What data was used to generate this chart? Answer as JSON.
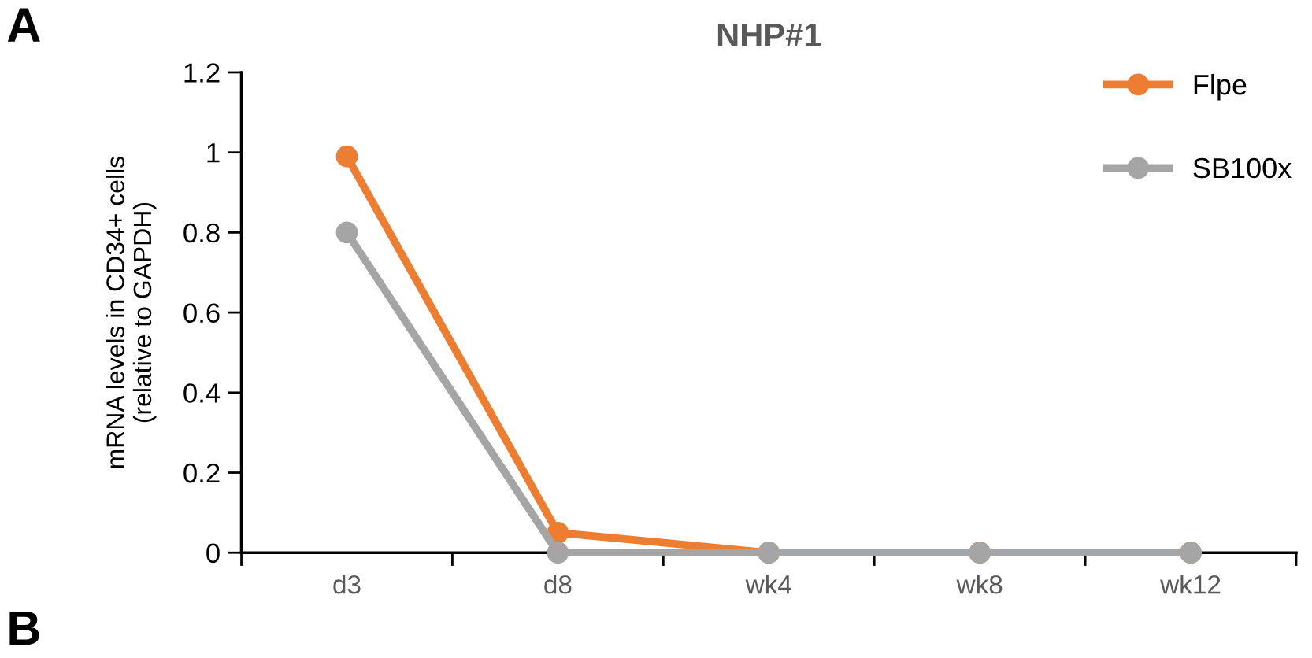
{
  "chart_data": {
    "type": "line",
    "title": "NHP#1",
    "ylabel": "mRNA levels in CD34+ cells\n(relative to GAPDH)",
    "categories": [
      "d3",
      "d8",
      "wk4",
      "wk8",
      "wk12"
    ],
    "series": [
      {
        "name": "Flpe",
        "color": "#ed7d31",
        "values": [
          0.99,
          0.05,
          0,
          0,
          0
        ]
      },
      {
        "name": "SB100x",
        "color": "#a5a5a5",
        "values": [
          0.8,
          0,
          0,
          0,
          0
        ]
      }
    ],
    "ylim": [
      0,
      1.2
    ],
    "yticks": [
      0,
      0.2,
      0.4,
      0.6,
      0.8,
      1,
      1.2
    ],
    "marker": "circle",
    "line_style": "solid",
    "grid": false,
    "legend": "top right",
    "annotations": [
      "A",
      "B"
    ]
  }
}
